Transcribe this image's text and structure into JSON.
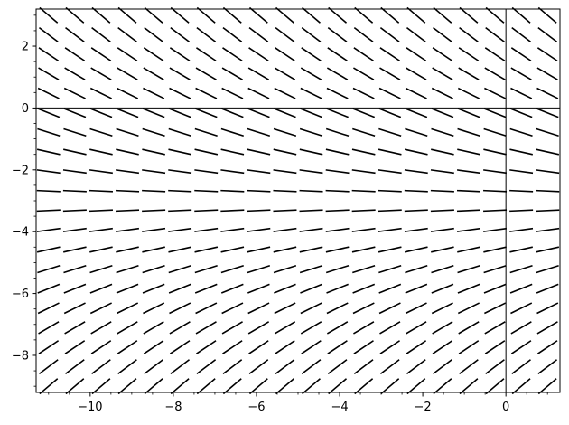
{
  "chart_data": {
    "type": "slope_field",
    "title": "",
    "xlabel": "",
    "ylabel": "",
    "xlim": [
      -11.3,
      1.3
    ],
    "ylim": [
      -9.2,
      3.2
    ],
    "x_ticks": [
      {
        "value": -10,
        "label": "−10"
      },
      {
        "value": -8,
        "label": "−8"
      },
      {
        "value": -6,
        "label": "−6"
      },
      {
        "value": -4,
        "label": "−4"
      },
      {
        "value": -2,
        "label": "−2"
      },
      {
        "value": 0,
        "label": "0"
      }
    ],
    "y_ticks": [
      {
        "value": 2,
        "label": "2"
      },
      {
        "value": 0,
        "label": "0"
      },
      {
        "value": -2,
        "label": "−2"
      },
      {
        "value": -4,
        "label": "−4"
      },
      {
        "value": -6,
        "label": "−6"
      },
      {
        "value": -8,
        "label": "−8"
      }
    ],
    "x_minor_step": 0.5,
    "y_minor_step": 0.5,
    "grid": false,
    "axes_lines": {
      "x_axis_at": 0,
      "y_axis_at": 0
    },
    "x_range": [
      -11.0,
      1.0
    ],
    "y_range": [
      -9.0,
      3.0
    ],
    "field_samples": 20,
    "slope_model": {
      "description": "direction of each segment is slope y' = a*y + b for the row's y value",
      "a": -0.19,
      "b": -0.57
    },
    "segment_color": "#000000",
    "axis_color": "#000000"
  }
}
